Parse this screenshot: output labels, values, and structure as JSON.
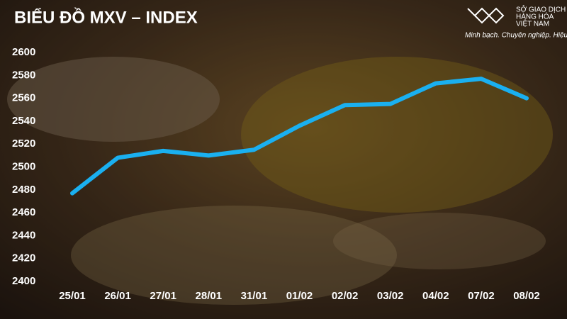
{
  "chart_data": {
    "type": "line",
    "title": "BIỂU ĐỒ MXV – INDEX",
    "categories": [
      "25/01",
      "26/01",
      "27/01",
      "28/01",
      "31/01",
      "01/02",
      "02/02",
      "03/02",
      "04/02",
      "07/02",
      "08/02"
    ],
    "values": [
      2477,
      2508,
      2514,
      2510,
      2515,
      2536,
      2554,
      2555,
      2573,
      2577,
      2560
    ],
    "color": "#1ab0f0",
    "ylim": [
      2400,
      2600
    ],
    "yticks": [
      2400,
      2420,
      2440,
      2460,
      2480,
      2500,
      2520,
      2540,
      2560,
      2580,
      2600
    ]
  },
  "logo": {
    "lines": [
      "SỞ GIAO DỊCH",
      "HÀNG HÓA",
      "VIỆT NAM"
    ],
    "slogan": "Minh bạch. Chuyên nghiệp. Hiệu quả"
  }
}
